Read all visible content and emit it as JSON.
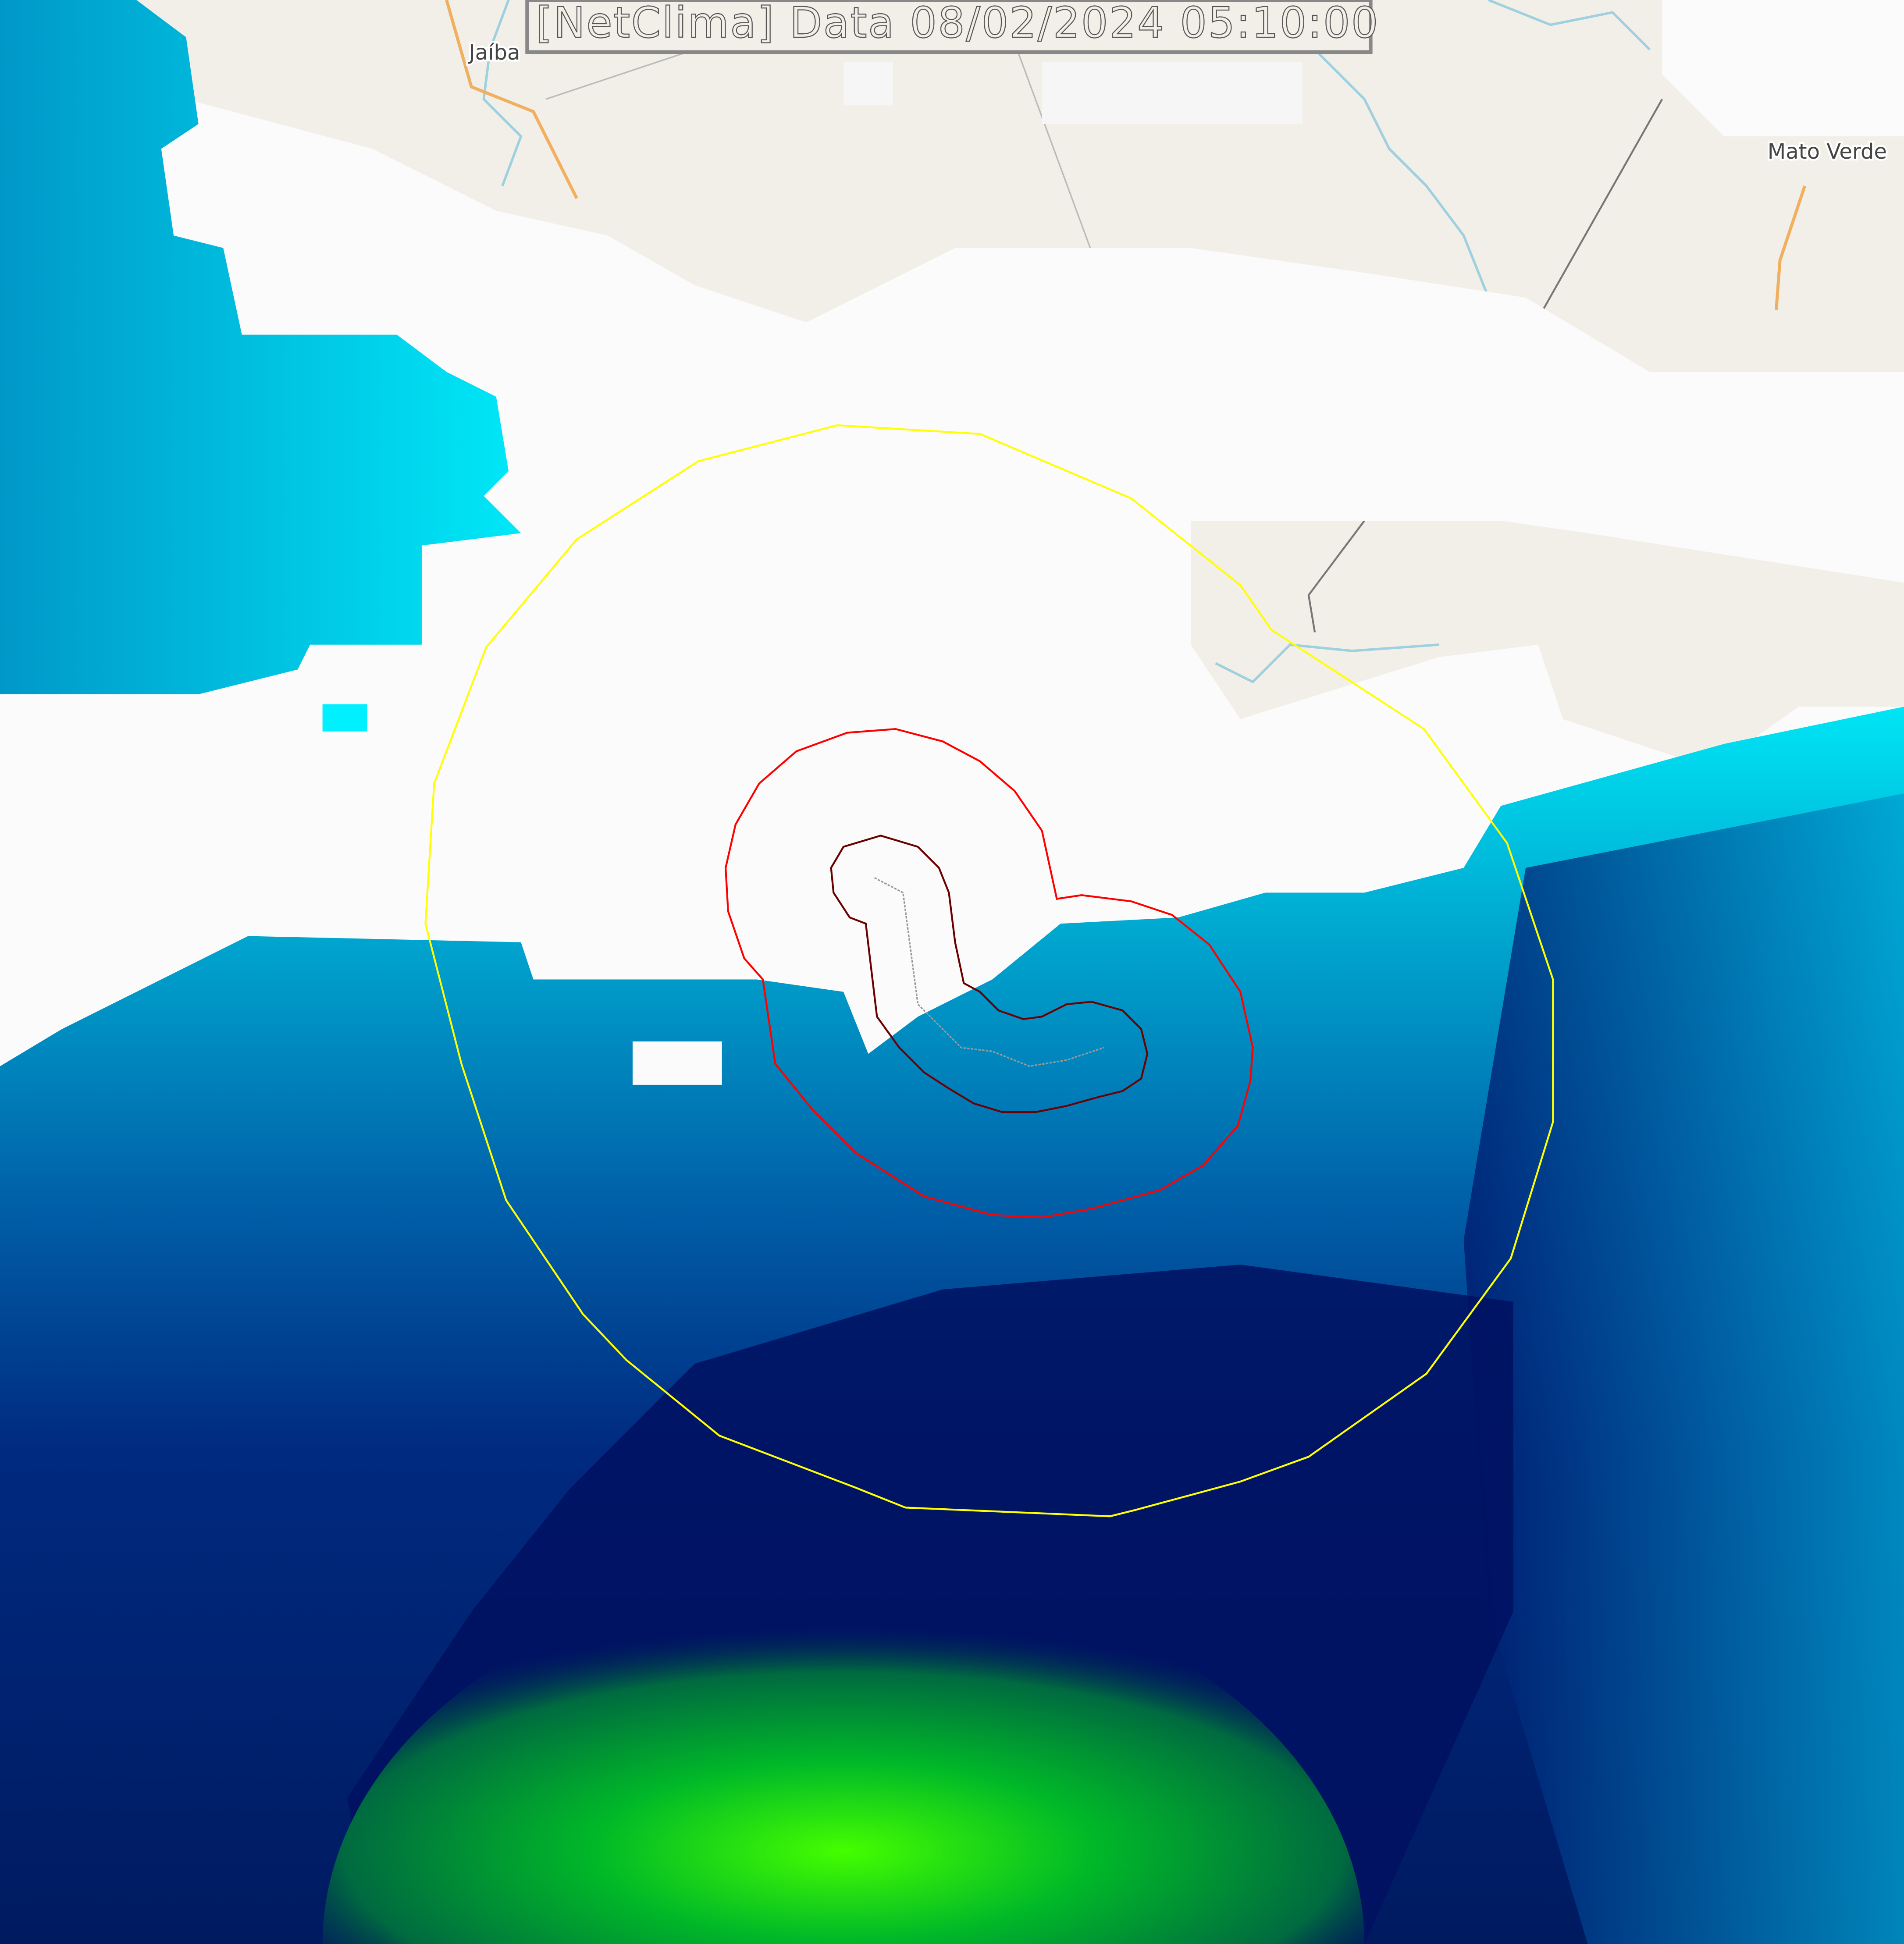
{
  "title": "[NetClima] Data 08/02/2024 05:10:00",
  "places": [
    {
      "name": "Jaíba"
    },
    {
      "name": "Mato Verde"
    }
  ],
  "colors": {
    "map_background": "#f2efe9",
    "cloud": "#ffffff",
    "outer_ring": "#ffff00",
    "middle_ring": "#ff0000",
    "inner_ring": "#6b0000",
    "track": "#999999",
    "rain_low": "#00ffff",
    "rain_mid": "#0070b0",
    "rain_high": "#000066",
    "rain_max": "#00ff00"
  },
  "layers": [
    "basemap",
    "radar-reflectivity",
    "storm-rings",
    "storm-track"
  ]
}
